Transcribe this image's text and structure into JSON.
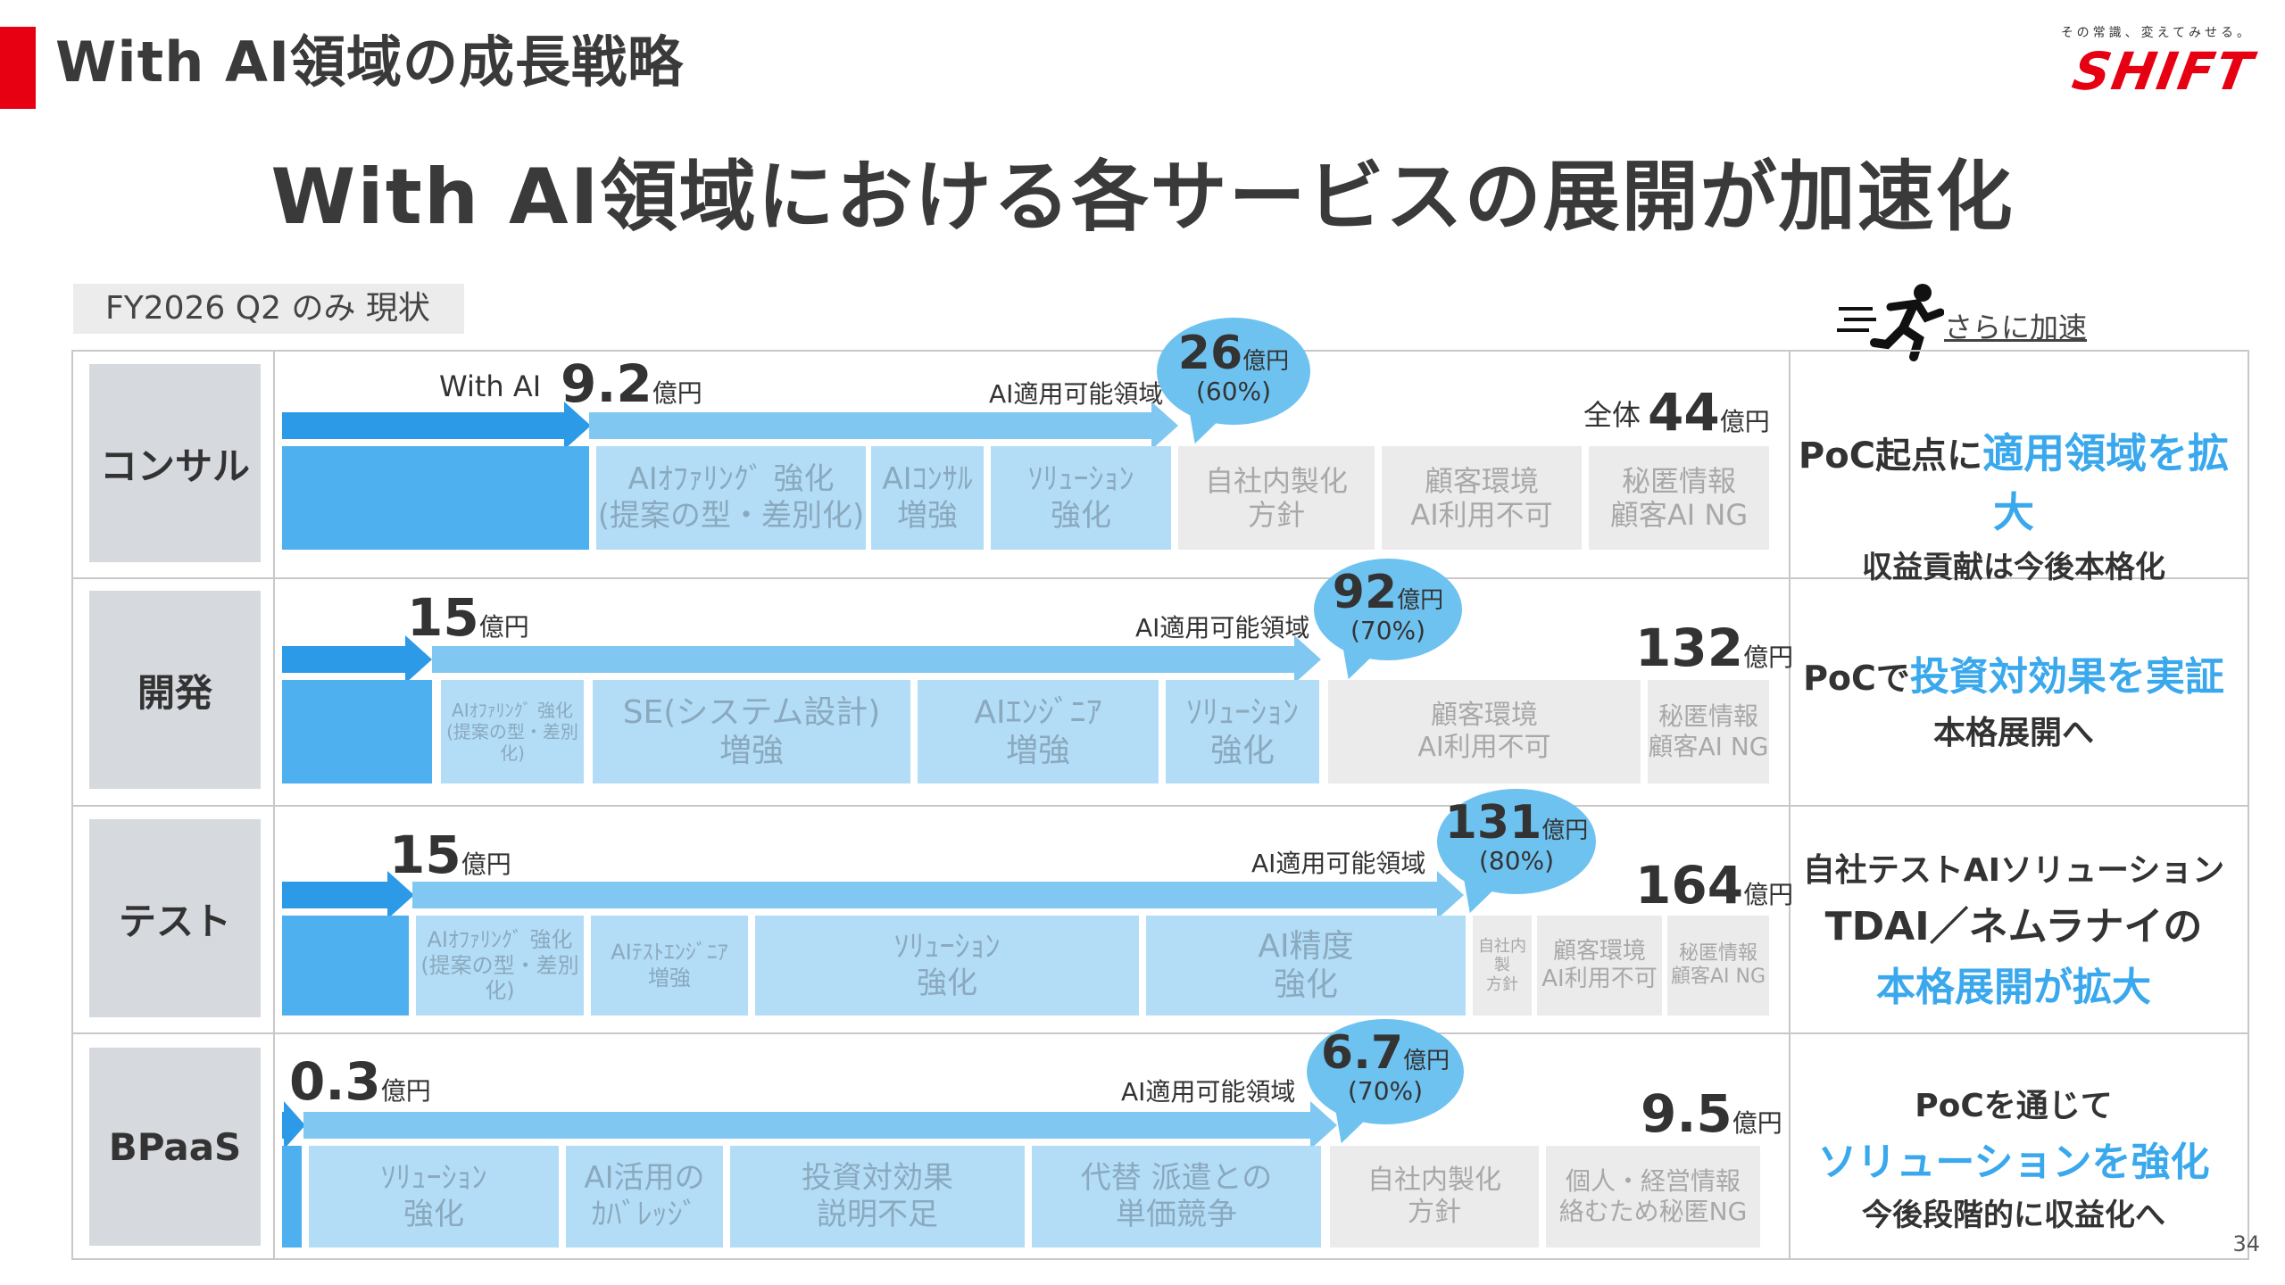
{
  "header": {
    "title": "With AI領域の成長戦略"
  },
  "logo": {
    "tagline": "その常識、変えてみせる。",
    "word": "SHIFT"
  },
  "main_title": "With AI領域における各サービスの展開が加速化",
  "period_tag": "FY2026 Q2 のみ 現状",
  "accel_label": "さらに加速",
  "rows": [
    {
      "label": "コンサル",
      "with_ai_label": "With AI",
      "current_value": "9.2",
      "unit": "億円",
      "applicable_label": "AI適用可能領域",
      "bubble_value": "26",
      "bubble_pct": "(60%)",
      "total_prefix": "全体",
      "total_value": "44",
      "blocks": [
        {
          "l1": "AIｵﾌｧﾘﾝｸﾞ 強化",
          "l2": "(提案の型・差別化)"
        },
        {
          "l1": "AIｺﾝｻﾙ",
          "l2": "増強"
        },
        {
          "l1": "ｿﾘｭｰｼｮﾝ",
          "l2": "強化"
        },
        {
          "l1": "自社内製化",
          "l2": "方針"
        },
        {
          "l1": "顧客環境",
          "l2": "AI利用不可"
        },
        {
          "l1": "秘匿情報",
          "l2": "顧客AI NG"
        }
      ],
      "right": {
        "l1a": "PoC起点に",
        "l1b": "適用領域を拡大",
        "l2": "収益貢献は今後本格化"
      }
    },
    {
      "label": "開発",
      "current_value": "15",
      "unit": "億円",
      "applicable_label": "AI適用可能領域",
      "bubble_value": "92",
      "bubble_pct": "(70%)",
      "total_value": "132",
      "blocks": [
        {
          "l1": "AIｵﾌｧﾘﾝｸﾞ 強化",
          "l2": "(提案の型・差別化)"
        },
        {
          "l1": "SE(システム設計)",
          "l2": "増強"
        },
        {
          "l1": "AIｴﾝｼﾞﾆｱ",
          "l2": "増強"
        },
        {
          "l1": "ｿﾘｭｰｼｮﾝ",
          "l2": "強化"
        },
        {
          "l1": "顧客環境",
          "l2": "AI利用不可"
        },
        {
          "l1": "秘匿情報",
          "l2": "顧客AI NG"
        }
      ],
      "right": {
        "l1a": "PoCで",
        "l1b": "投資対効果を実証",
        "l2": "本格展開へ"
      }
    },
    {
      "label": "テスト",
      "current_value": "15",
      "unit": "億円",
      "applicable_label": "AI適用可能領域",
      "bubble_value": "131",
      "bubble_pct": "(80%)",
      "total_value": "164",
      "blocks": [
        {
          "l1": "AIｵﾌｧﾘﾝｸﾞ 強化",
          "l2": "(提案の型・差別化)"
        },
        {
          "l1": "AIﾃｽﾄｴﾝｼﾞﾆｱ",
          "l2": "増強"
        },
        {
          "l1": "ｿﾘｭｰｼｮﾝ",
          "l2": "強化"
        },
        {
          "l1": "AI精度",
          "l2": "強化"
        },
        {
          "l1": "自社内製",
          "l2": "方針"
        },
        {
          "l1": "顧客環境",
          "l2": "AI利用不可"
        },
        {
          "l1": "秘匿情報",
          "l2": "顧客AI NG"
        }
      ],
      "right": {
        "l1": "自社テストAIソリューション",
        "l2": "TDAI／ネムラナイの",
        "l3": "本格展開が拡大"
      }
    },
    {
      "label": "BPaaS",
      "current_value": "0.3",
      "unit": "億円",
      "applicable_label": "AI適用可能領域",
      "bubble_value": "6.7",
      "bubble_pct": "(70%)",
      "total_value": "9.5",
      "blocks": [
        {
          "l1": "ｿﾘｭｰｼｮﾝ",
          "l2": "強化"
        },
        {
          "l1": "AI活用の",
          "l2": "ｶﾊﾞﾚｯｼﾞ"
        },
        {
          "l1": "投資対効果",
          "l2": "説明不足"
        },
        {
          "l1": "代替 派遣との",
          "l2": "単価競争"
        },
        {
          "l1": "自社内製化",
          "l2": "方針"
        },
        {
          "l1": "個人・経営情報",
          "l2": "絡むため秘匿NG"
        }
      ],
      "right": {
        "l1": "PoCを通じて",
        "l2": "ソリューションを強化",
        "l3": "今後段階的に収益化へ"
      }
    }
  ],
  "page_number": "34",
  "colors": {
    "brand_red": "#e60012",
    "solid_blue": "#4fb0ef",
    "light_blue": "#b3ddf6",
    "highlight": "#3aa8ec"
  }
}
